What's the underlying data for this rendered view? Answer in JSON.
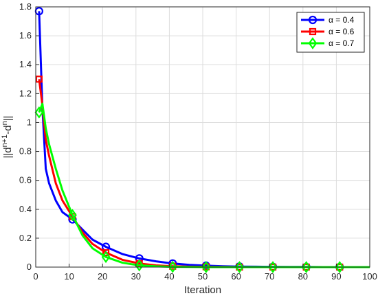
{
  "chart_data": {
    "type": "line",
    "title": "",
    "xlabel": "Iteration",
    "ylabel_parts": {
      "base": "||d",
      "sup1": "n+1",
      "mid": "-d",
      "sup2": "n",
      "end": "||"
    },
    "xlim": [
      0,
      100
    ],
    "ylim": [
      0,
      1.8
    ],
    "xticks": [
      0,
      10,
      20,
      30,
      40,
      50,
      60,
      70,
      80,
      90,
      100
    ],
    "yticks": [
      0,
      0.2,
      0.4,
      0.6,
      0.8,
      1,
      1.2,
      1.4,
      1.6,
      1.8
    ],
    "grid": true,
    "legend_position": "top-right",
    "series": [
      {
        "name": "α = 0.4",
        "color": "#0000ff",
        "marker": "circle",
        "x": [
          1,
          2,
          3,
          4,
          6,
          8,
          11,
          14,
          17,
          21,
          26,
          31,
          36,
          41,
          46,
          51,
          56,
          61,
          66,
          71,
          76,
          81,
          86,
          91,
          96,
          100
        ],
        "y": [
          1.77,
          1.1,
          0.68,
          0.58,
          0.46,
          0.38,
          0.33,
          0.26,
          0.19,
          0.14,
          0.09,
          0.06,
          0.04,
          0.025,
          0.015,
          0.01,
          0.006,
          0.004,
          0.003,
          0.002,
          0.001,
          0.001,
          0.0,
          0.0,
          0.0,
          0.0
        ],
        "marker_x": [
          1,
          11,
          21,
          31,
          41,
          51,
          61,
          71,
          81,
          91
        ]
      },
      {
        "name": "α = 0.6",
        "color": "#ff0000",
        "marker": "square",
        "x": [
          1,
          2,
          3,
          4,
          6,
          8,
          11,
          14,
          17,
          21,
          26,
          31,
          36,
          41,
          46,
          51,
          56,
          61,
          66,
          71,
          76,
          81,
          86,
          91,
          96,
          100
        ],
        "y": [
          1.3,
          1.12,
          0.88,
          0.77,
          0.58,
          0.46,
          0.35,
          0.24,
          0.16,
          0.1,
          0.05,
          0.025,
          0.012,
          0.006,
          0.003,
          0.002,
          0.001,
          0.0,
          0.0,
          0.0,
          0.0,
          0.0,
          0.0,
          0.0,
          0.0,
          0.0
        ],
        "marker_x": [
          1,
          11,
          21,
          31,
          41,
          51,
          61,
          71,
          81,
          91
        ]
      },
      {
        "name": "α = 0.7",
        "color": "#00ff00",
        "marker": "diamond",
        "x": [
          1,
          2,
          3,
          4,
          6,
          8,
          11,
          14,
          17,
          21,
          26,
          31,
          36,
          41,
          46,
          51,
          56,
          61,
          66,
          71,
          76,
          81,
          86,
          91,
          96,
          100
        ],
        "y": [
          1.07,
          1.13,
          0.96,
          0.85,
          0.68,
          0.53,
          0.36,
          0.22,
          0.13,
          0.07,
          0.03,
          0.012,
          0.005,
          0.002,
          0.001,
          0.0,
          0.0,
          0.0,
          0.0,
          0.0,
          0.0,
          0.0,
          0.0,
          0.0,
          0.0,
          0.0
        ],
        "marker_x": [
          1,
          11,
          21,
          31,
          41,
          51,
          61,
          71,
          81,
          91
        ]
      }
    ]
  }
}
